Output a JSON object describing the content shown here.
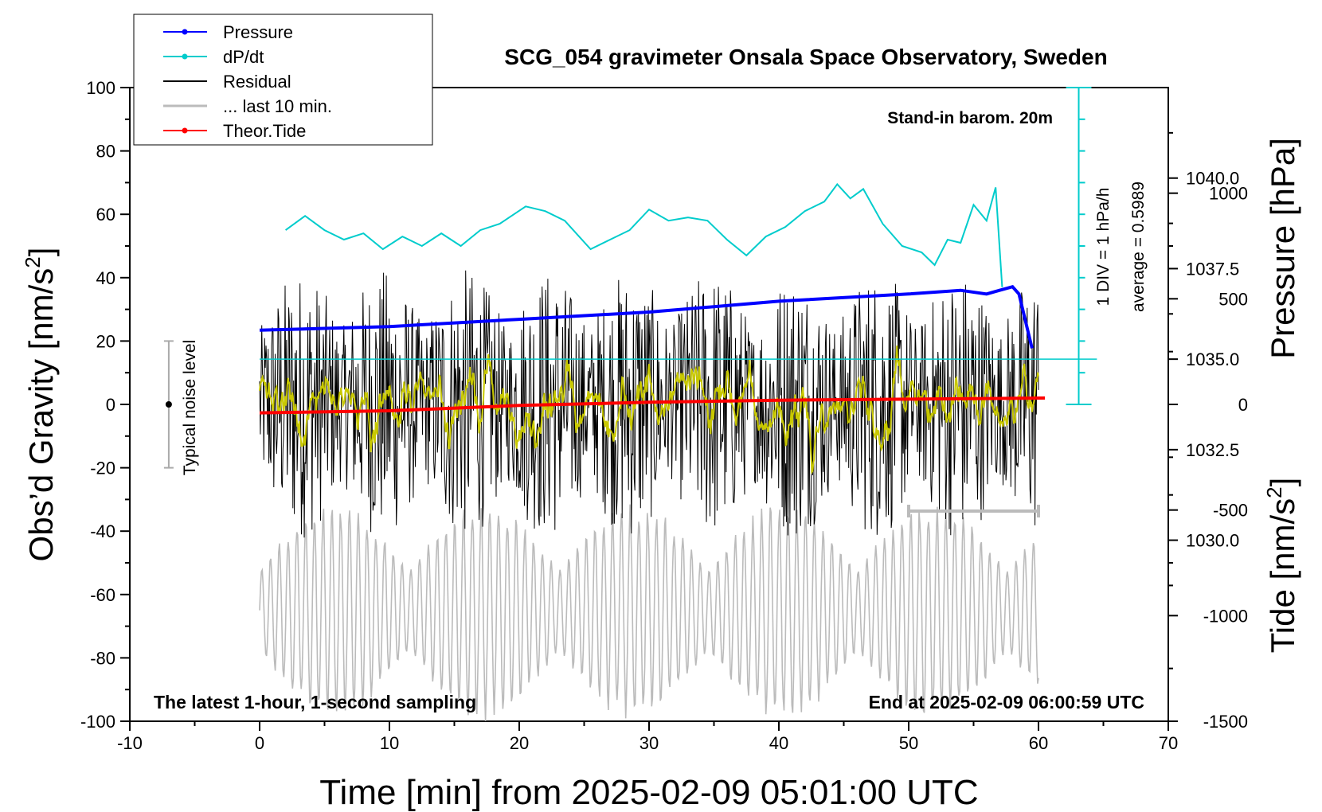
{
  "chart_data": {
    "type": "line",
    "title": "SCG_054 gravimeter Onsala Space Observatory, Sweden",
    "xlabel": "Time [min] from 2025-02-09 05:01:00 UTC",
    "ylabel_left": "Obs’d Gravity [nm/s",
    "ylabel_left_sup": "2",
    "ylabel_left_end": "]",
    "ylabel_pressure": "Pressure [hPa]",
    "ylabel_tide": "Tide [nm/s",
    "ylabel_tide_sup": "2",
    "ylabel_tide_end": "]",
    "xlim": [
      -10,
      70
    ],
    "ylim": [
      -100,
      100
    ],
    "pressure_lim": [
      1025.0,
      1042.5
    ],
    "tide_lim": [
      -1500,
      1500
    ],
    "x_ticks": [
      "-10",
      "0",
      "10",
      "20",
      "30",
      "40",
      "50",
      "60",
      "70"
    ],
    "y_ticks": [
      "-100",
      "-80",
      "-60",
      "-40",
      "-20",
      "0",
      "20",
      "40",
      "60",
      "80",
      "100"
    ],
    "pressure_ticks": [
      "1030.0",
      "1032.5",
      "1035.0",
      "1037.5",
      "1040.0"
    ],
    "tide_ticks": [
      "-1500",
      "-1000",
      "-500",
      "0",
      "500",
      "1000"
    ],
    "legend": {
      "position": "top-left",
      "entries": [
        {
          "label": "Pressure",
          "color": "#0000ff"
        },
        {
          "label": "dP/dt",
          "color": "#00cccc"
        },
        {
          "label": "Residual",
          "color": "#000000"
        },
        {
          "label": "... last 10 min.",
          "color": "#bbbbbb"
        },
        {
          "label": "Theor.Tide",
          "color": "#ff0000"
        }
      ]
    },
    "annotations": {
      "stand_in": "Stand-in barom. 20m",
      "noise_label": "Typical noise level",
      "div_label": "1 DIV = 1 hPa/h",
      "average_label": "average = 0.5989",
      "bottom_left": "The latest 1-hour, 1-second sampling",
      "bottom_right": "End at 2025-02-09 06:00:59 UTC"
    },
    "series": [
      {
        "name": "Pressure",
        "axis": "pressure",
        "color": "#0000ff",
        "x": [
          0,
          10,
          20,
          30,
          40,
          50,
          54,
          56,
          57,
          58,
          58.5,
          59.5
        ],
        "y": [
          1035.8,
          1035.9,
          1036.1,
          1036.3,
          1036.6,
          1036.8,
          1036.9,
          1036.8,
          1036.9,
          1037.0,
          1036.8,
          1035.3
        ]
      },
      {
        "name": "dP/dt",
        "axis": "left",
        "color": "#00cccc",
        "x": [
          2,
          3.5,
          5,
          6.5,
          8,
          9.5,
          11,
          12.5,
          14,
          15.5,
          17,
          18.5,
          20.5,
          22,
          23.5,
          25.5,
          27,
          28.5,
          30,
          31.5,
          33,
          34.5,
          36,
          37.5,
          39,
          40.5,
          42,
          43.5,
          44.5,
          45.5,
          46.5,
          48,
          49.5,
          51,
          52,
          53,
          54,
          55,
          56,
          56.7,
          57.2
        ],
        "y": [
          55,
          59.5,
          55,
          52,
          54,
          49,
          53,
          50,
          54,
          50,
          55,
          57,
          62.5,
          61,
          58,
          49,
          52,
          55,
          61.5,
          58,
          59,
          58,
          52,
          47,
          53,
          56,
          61,
          64,
          69.5,
          65,
          68,
          57,
          50,
          48,
          44,
          52,
          51,
          63,
          58,
          68.5,
          37
        ]
      },
      {
        "name": "Residual",
        "axis": "left",
        "color": "#000000",
        "x": [
          0,
          60
        ],
        "amplitude": [
          -42,
          43
        ],
        "mean": 0
      },
      {
        "name": "... last 10 min.",
        "axis": "left",
        "color": "#bbbbbb",
        "x": [
          0,
          60
        ],
        "range": [
          -100,
          -30
        ]
      },
      {
        "name": "Theor.Tide",
        "axis": "tide",
        "color": "#ff0000",
        "x": [
          0,
          10,
          20,
          30,
          40,
          50,
          60.5
        ],
        "y": [
          -40,
          -30,
          -5,
          10,
          20,
          25,
          30
        ]
      }
    ],
    "reference_lines": [
      {
        "name": "dP/dt average",
        "axis": "pressure",
        "value": 1035.0,
        "color": "#00cccc"
      }
    ],
    "error_bars": [
      {
        "name": "typical-noise",
        "x": -7,
        "y": 0,
        "low": -20,
        "high": 20
      }
    ]
  }
}
